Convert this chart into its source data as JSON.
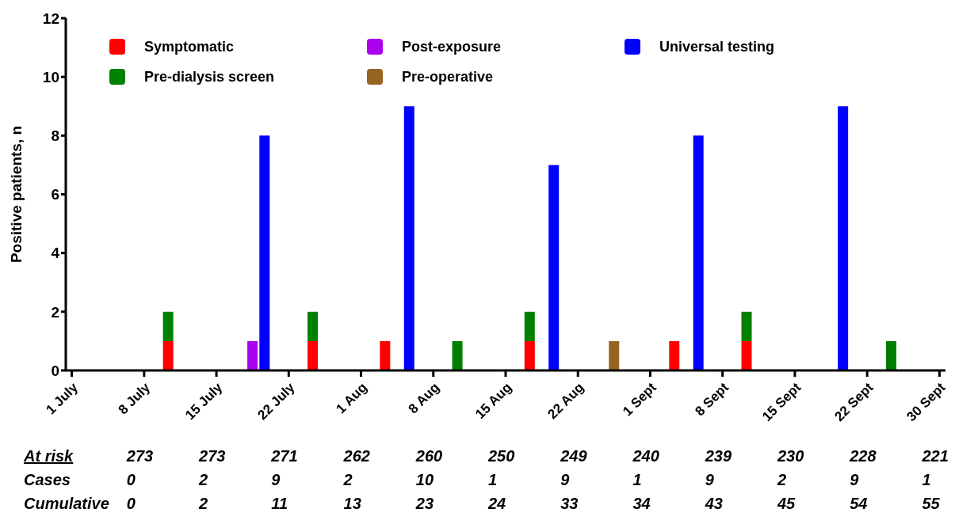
{
  "chart_data": {
    "type": "bar",
    "stacked": true,
    "ylabel": "Positive patients, n",
    "categories": [
      "1 July",
      null,
      null,
      null,
      null,
      null,
      "8 July",
      null,
      null,
      null,
      null,
      null,
      "15 July",
      null,
      null,
      null,
      null,
      null,
      "22 July",
      null,
      null,
      null,
      null,
      null,
      "1 Aug",
      null,
      null,
      null,
      null,
      null,
      "8 Aug",
      null,
      null,
      null,
      null,
      null,
      "15 Aug",
      null,
      null,
      null,
      null,
      null,
      "22 Aug",
      null,
      null,
      null,
      null,
      null,
      "1 Sept",
      null,
      null,
      null,
      null,
      null,
      "8 Sept",
      null,
      null,
      null,
      null,
      null,
      "15 Sept",
      null,
      null,
      null,
      null,
      null,
      "22 Sept",
      null,
      null,
      null,
      null,
      null,
      "30 Sept"
    ],
    "series": [
      {
        "name": "Symptomatic",
        "color": "#ff0000",
        "values": [
          null,
          null,
          null,
          null,
          null,
          null,
          null,
          null,
          1,
          null,
          null,
          null,
          null,
          null,
          null,
          null,
          null,
          null,
          null,
          null,
          1,
          null,
          null,
          null,
          null,
          null,
          1,
          null,
          null,
          null,
          null,
          null,
          null,
          null,
          null,
          null,
          null,
          null,
          1,
          null,
          null,
          null,
          null,
          null,
          null,
          null,
          null,
          null,
          null,
          null,
          1,
          null,
          null,
          null,
          null,
          null,
          1,
          null,
          null,
          null,
          null,
          null,
          null,
          null,
          null,
          null,
          null,
          null,
          null,
          null,
          null,
          null,
          null
        ]
      },
      {
        "name": "Pre-dialysis screen",
        "color": "#008000",
        "values": [
          null,
          null,
          null,
          null,
          null,
          null,
          null,
          null,
          1,
          null,
          null,
          null,
          null,
          null,
          null,
          null,
          null,
          null,
          null,
          null,
          1,
          null,
          null,
          null,
          null,
          null,
          null,
          null,
          null,
          null,
          null,
          null,
          1,
          null,
          null,
          null,
          null,
          null,
          1,
          null,
          null,
          null,
          null,
          null,
          null,
          null,
          null,
          null,
          null,
          null,
          null,
          null,
          null,
          null,
          null,
          null,
          1,
          null,
          null,
          null,
          null,
          null,
          null,
          null,
          null,
          null,
          null,
          null,
          1,
          null,
          null,
          null,
          null
        ]
      },
      {
        "name": "Post-exposure",
        "color": "#aa00ee",
        "values": [
          null,
          null,
          null,
          null,
          null,
          null,
          null,
          null,
          null,
          null,
          null,
          null,
          null,
          null,
          null,
          1,
          null,
          null,
          null,
          null,
          null,
          null,
          null,
          null,
          null,
          null,
          null,
          null,
          null,
          null,
          null,
          null,
          null,
          null,
          null,
          null,
          null,
          null,
          null,
          null,
          null,
          null,
          null,
          null,
          null,
          null,
          null,
          null,
          null,
          null,
          null,
          null,
          null,
          null,
          null,
          null,
          null,
          null,
          null,
          null,
          null,
          null,
          null,
          null,
          null,
          null,
          null,
          null,
          null,
          null,
          null,
          null,
          null
        ]
      },
      {
        "name": "Pre-operative",
        "color": "#956420",
        "values": [
          null,
          null,
          null,
          null,
          null,
          null,
          null,
          null,
          null,
          null,
          null,
          null,
          null,
          null,
          null,
          null,
          null,
          null,
          null,
          null,
          null,
          null,
          null,
          null,
          null,
          null,
          null,
          null,
          null,
          null,
          null,
          null,
          null,
          null,
          null,
          null,
          null,
          null,
          null,
          null,
          null,
          null,
          null,
          null,
          null,
          1,
          null,
          null,
          null,
          null,
          null,
          null,
          null,
          null,
          null,
          null,
          null,
          null,
          null,
          null,
          null,
          null,
          null,
          null,
          null,
          null,
          null,
          null,
          null,
          null,
          null,
          null,
          null
        ]
      },
      {
        "name": "Universal testing",
        "color": "#0000ff",
        "values": [
          null,
          null,
          null,
          null,
          null,
          null,
          null,
          null,
          null,
          null,
          null,
          null,
          null,
          null,
          null,
          null,
          8,
          null,
          null,
          null,
          null,
          null,
          null,
          null,
          null,
          null,
          null,
          null,
          9,
          null,
          null,
          null,
          null,
          null,
          null,
          null,
          null,
          null,
          null,
          null,
          7,
          null,
          null,
          null,
          null,
          null,
          null,
          null,
          null,
          null,
          null,
          null,
          8,
          null,
          null,
          null,
          null,
          null,
          null,
          null,
          null,
          null,
          null,
          null,
          9,
          null,
          null,
          null,
          null,
          null,
          null,
          null,
          null
        ]
      }
    ],
    "ylim": [
      0,
      12
    ],
    "yticks": [
      0,
      2,
      4,
      6,
      8,
      10,
      12
    ],
    "grid": false,
    "legend": "top",
    "annotations": [
      "At risk",
      "273",
      "273",
      "271",
      "262",
      "260",
      "250",
      "249",
      "240",
      "239",
      "230",
      "228",
      "221",
      "Cases",
      "0",
      "2",
      "9",
      "2",
      "10",
      "1",
      "9",
      "1",
      "9",
      "2",
      "9",
      "1",
      "Cumulative",
      "0",
      "2",
      "11",
      "13",
      "23",
      "24",
      "33",
      "34",
      "43",
      "45",
      "54",
      "55"
    ]
  }
}
